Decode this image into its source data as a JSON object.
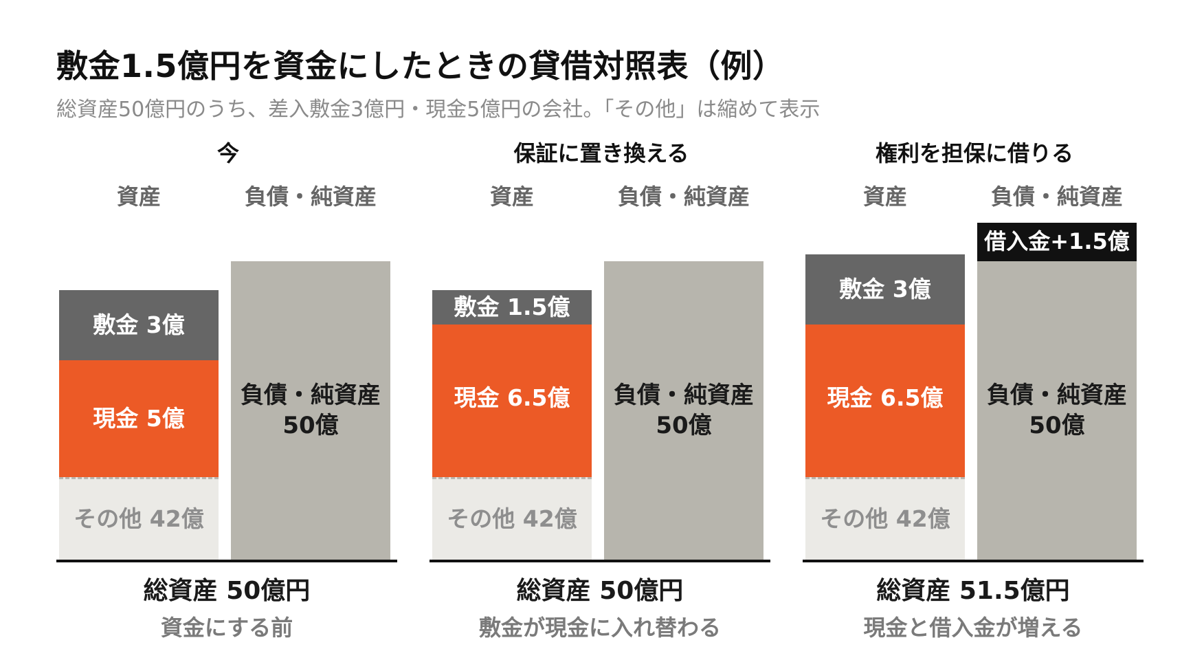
{
  "title": "敷金1.5億円を資金にしたときの貸借対照表（例）",
  "subtitle": "総資産50億円のうち、差入敷金3億円・現金5億円の会社。「その他」は縮めて表示",
  "colors": {
    "shikikin": "#666666",
    "cash": "#ec5a26",
    "other": "#ebeae6",
    "liabilities": "#b7b5ad",
    "loan": "#111111"
  },
  "chart_data": [
    {
      "type": "bar",
      "stacked": true,
      "title": "今",
      "categories": [
        "資産",
        "負債・純資産"
      ],
      "series": [
        {
          "name": "敷金",
          "category": "資産",
          "value": 3,
          "label": "敷金 3億"
        },
        {
          "name": "現金",
          "category": "資産",
          "value": 5,
          "label": "現金 5億"
        },
        {
          "name": "その他",
          "category": "資産",
          "value": 42,
          "label": "その他 42億"
        },
        {
          "name": "負債・純資産",
          "category": "負債・純資産",
          "value": 50,
          "label": "負債・純資産\n50億"
        }
      ],
      "total": "総資産 50億円",
      "note": "資金にする前"
    },
    {
      "type": "bar",
      "stacked": true,
      "title": "保証に置き換える",
      "categories": [
        "資産",
        "負債・純資産"
      ],
      "series": [
        {
          "name": "敷金",
          "category": "資産",
          "value": 1.5,
          "label": "敷金 1.5億"
        },
        {
          "name": "現金",
          "category": "資産",
          "value": 6.5,
          "label": "現金 6.5億"
        },
        {
          "name": "その他",
          "category": "資産",
          "value": 42,
          "label": "その他 42億"
        },
        {
          "name": "負債・純資産",
          "category": "負債・純資産",
          "value": 50,
          "label": "負債・純資産\n50億"
        }
      ],
      "total": "総資産 50億円",
      "note": "敷金が現金に入れ替わる"
    },
    {
      "type": "bar",
      "stacked": true,
      "title": "権利を担保に借りる",
      "categories": [
        "資産",
        "負債・純資産"
      ],
      "series": [
        {
          "name": "敷金",
          "category": "資産",
          "value": 3,
          "label": "敷金 3億"
        },
        {
          "name": "現金",
          "category": "資産",
          "value": 6.5,
          "label": "現金 6.5億"
        },
        {
          "name": "その他",
          "category": "資産",
          "value": 42,
          "label": "その他 42億"
        },
        {
          "name": "借入金",
          "category": "負債・純資産",
          "value": 1.5,
          "label": "借入金+1.5億"
        },
        {
          "name": "負債・純資産",
          "category": "負債・純資産",
          "value": 50,
          "label": "負債・純資産\n50億"
        }
      ],
      "total": "総資産 51.5億円",
      "note": "現金と借入金が増える"
    }
  ]
}
